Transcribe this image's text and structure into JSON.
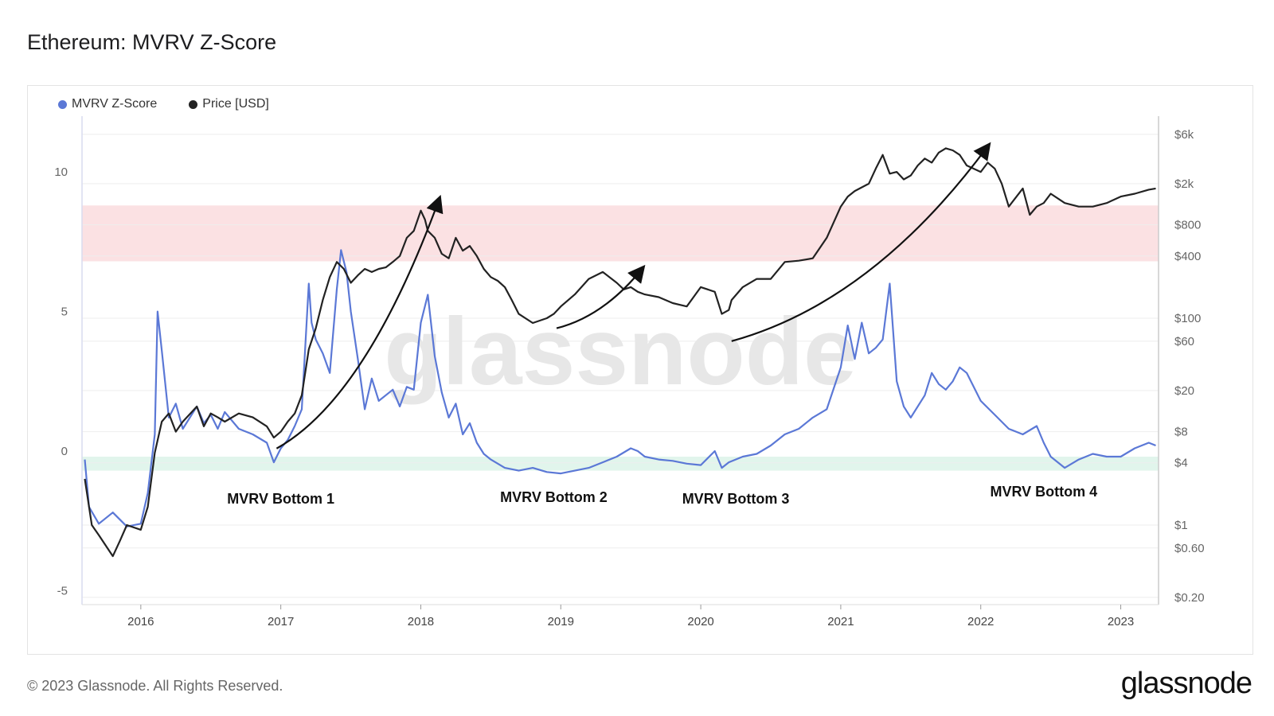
{
  "title": "Ethereum: MVRV Z-Score",
  "legend": [
    {
      "label": "MVRV Z-Score",
      "color": "#5b78d6"
    },
    {
      "label": "Price [USD]",
      "color": "#222222"
    }
  ],
  "footer": {
    "copyright": "© 2023 Glassnode. All Rights Reserved.",
    "brand": "glassnode"
  },
  "watermark": "glassnode",
  "chart_data": {
    "type": "line",
    "left_axis": {
      "ticks": [
        10,
        5,
        0,
        -5
      ],
      "tick_labels": [
        "10",
        "5",
        "0",
        "-5"
      ],
      "range": [
        -5.5,
        12
      ]
    },
    "right_axis": {
      "scale": "log",
      "ticks": [
        6000,
        2000,
        800,
        400,
        100,
        60,
        20,
        8,
        4,
        1,
        0.6,
        0.2
      ],
      "tick_labels": [
        "$6k",
        "$2k",
        "$800",
        "$400",
        "$100",
        "$60",
        "$20",
        "$8",
        "$4",
        "$1",
        "$0.60",
        "$0.20"
      ],
      "range": [
        0.17,
        9000
      ]
    },
    "x_axis": {
      "range": [
        2015.58,
        2023.27
      ],
      "ticks": [
        2016,
        2017,
        2018,
        2019,
        2020,
        2021,
        2022,
        2023
      ],
      "tick_labels": [
        "2016",
        "2017",
        "2018",
        "2019",
        "2020",
        "2021",
        "2022",
        "2023"
      ]
    },
    "bands": [
      {
        "name": "overvalued",
        "from": 6.8,
        "to": 8.8,
        "color": "#fbe1e3"
      },
      {
        "name": "undervalued",
        "from": -0.7,
        "to": -0.2,
        "color": "#e1f5ec"
      }
    ],
    "series": [
      {
        "name": "MVRV Z-Score",
        "color": "#5b78d6",
        "axis": "left",
        "x": [
          2015.6,
          2015.63,
          2015.7,
          2015.8,
          2015.9,
          2016.0,
          2016.05,
          2016.1,
          2016.12,
          2016.15,
          2016.2,
          2016.25,
          2016.3,
          2016.4,
          2016.45,
          2016.5,
          2016.55,
          2016.6,
          2016.7,
          2016.8,
          2016.9,
          2016.95,
          2017.0,
          2017.05,
          2017.1,
          2017.15,
          2017.2,
          2017.22,
          2017.25,
          2017.3,
          2017.35,
          2017.4,
          2017.43,
          2017.47,
          2017.5,
          2017.55,
          2017.6,
          2017.65,
          2017.7,
          2017.8,
          2017.85,
          2017.9,
          2017.95,
          2018.0,
          2018.05,
          2018.1,
          2018.15,
          2018.2,
          2018.25,
          2018.3,
          2018.35,
          2018.4,
          2018.45,
          2018.5,
          2018.6,
          2018.7,
          2018.8,
          2018.9,
          2019.0,
          2019.1,
          2019.2,
          2019.3,
          2019.4,
          2019.5,
          2019.55,
          2019.6,
          2019.7,
          2019.8,
          2019.9,
          2020.0,
          2020.1,
          2020.15,
          2020.2,
          2020.3,
          2020.4,
          2020.5,
          2020.6,
          2020.7,
          2020.8,
          2020.9,
          2021.0,
          2021.05,
          2021.1,
          2021.15,
          2021.2,
          2021.25,
          2021.3,
          2021.35,
          2021.4,
          2021.45,
          2021.5,
          2021.6,
          2021.65,
          2021.7,
          2021.75,
          2021.8,
          2021.85,
          2021.9,
          2022.0,
          2022.1,
          2022.2,
          2022.3,
          2022.4,
          2022.45,
          2022.5,
          2022.6,
          2022.7,
          2022.8,
          2022.9,
          2023.0,
          2023.1,
          2023.2,
          2023.25
        ],
        "values": [
          -0.3,
          -2.0,
          -2.6,
          -2.2,
          -2.7,
          -2.6,
          -1.5,
          0.6,
          5.0,
          3.6,
          1.2,
          1.7,
          0.8,
          1.6,
          1.0,
          1.3,
          0.8,
          1.4,
          0.8,
          0.6,
          0.3,
          -0.4,
          0.1,
          0.4,
          0.9,
          1.5,
          6.0,
          4.6,
          4.0,
          3.5,
          2.8,
          5.8,
          7.2,
          6.4,
          5.0,
          3.3,
          1.5,
          2.6,
          1.8,
          2.2,
          1.6,
          2.3,
          2.2,
          4.6,
          5.6,
          3.4,
          2.1,
          1.2,
          1.7,
          0.6,
          1.0,
          0.3,
          -0.1,
          -0.3,
          -0.6,
          -0.7,
          -0.6,
          -0.75,
          -0.8,
          -0.7,
          -0.6,
          -0.4,
          -0.2,
          0.1,
          0.0,
          -0.2,
          -0.3,
          -0.35,
          -0.45,
          -0.5,
          0.0,
          -0.6,
          -0.4,
          -0.2,
          -0.1,
          0.2,
          0.6,
          0.8,
          1.2,
          1.5,
          3.0,
          4.5,
          3.3,
          4.6,
          3.5,
          3.7,
          4.0,
          6.0,
          2.5,
          1.6,
          1.2,
          2.0,
          2.8,
          2.4,
          2.2,
          2.5,
          3.0,
          2.8,
          1.8,
          1.3,
          0.8,
          0.6,
          0.9,
          0.3,
          -0.2,
          -0.6,
          -0.3,
          -0.1,
          -0.2,
          -0.2,
          0.1,
          0.3,
          0.2
        ]
      },
      {
        "name": "Price [USD]",
        "color": "#222222",
        "axis": "right",
        "x": [
          2015.6,
          2015.65,
          2015.7,
          2015.8,
          2015.85,
          2015.9,
          2016.0,
          2016.05,
          2016.1,
          2016.15,
          2016.2,
          2016.25,
          2016.3,
          2016.4,
          2016.45,
          2016.5,
          2016.55,
          2016.6,
          2016.7,
          2016.8,
          2016.9,
          2016.95,
          2017.0,
          2017.05,
          2017.1,
          2017.15,
          2017.2,
          2017.25,
          2017.3,
          2017.35,
          2017.4,
          2017.45,
          2017.5,
          2017.55,
          2017.6,
          2017.65,
          2017.7,
          2017.75,
          2017.8,
          2017.85,
          2017.9,
          2017.95,
          2018.0,
          2018.03,
          2018.05,
          2018.1,
          2018.15,
          2018.2,
          2018.25,
          2018.3,
          2018.35,
          2018.4,
          2018.45,
          2018.5,
          2018.55,
          2018.6,
          2018.65,
          2018.7,
          2018.8,
          2018.9,
          2018.95,
          2019.0,
          2019.1,
          2019.2,
          2019.3,
          2019.4,
          2019.45,
          2019.5,
          2019.55,
          2019.6,
          2019.7,
          2019.8,
          2019.9,
          2020.0,
          2020.1,
          2020.15,
          2020.2,
          2020.22,
          2020.3,
          2020.4,
          2020.5,
          2020.6,
          2020.7,
          2020.8,
          2020.9,
          2021.0,
          2021.05,
          2021.1,
          2021.2,
          2021.25,
          2021.3,
          2021.35,
          2021.4,
          2021.45,
          2021.5,
          2021.55,
          2021.6,
          2021.65,
          2021.7,
          2021.75,
          2021.8,
          2021.85,
          2021.9,
          2022.0,
          2022.05,
          2022.1,
          2022.15,
          2022.2,
          2022.3,
          2022.35,
          2022.4,
          2022.45,
          2022.5,
          2022.6,
          2022.7,
          2022.8,
          2022.9,
          2023.0,
          2023.1,
          2023.2,
          2023.25
        ],
        "values": [
          2.8,
          1.0,
          0.8,
          0.5,
          0.7,
          1.0,
          0.9,
          1.5,
          5.0,
          10,
          12,
          8,
          10,
          14,
          9,
          12,
          11,
          10,
          12,
          11,
          9,
          7,
          8,
          10,
          12,
          18,
          50,
          80,
          150,
          250,
          350,
          300,
          220,
          260,
          300,
          280,
          300,
          310,
          350,
          400,
          600,
          700,
          1100,
          900,
          700,
          600,
          420,
          380,
          600,
          450,
          500,
          400,
          300,
          250,
          230,
          200,
          150,
          110,
          90,
          100,
          110,
          130,
          170,
          240,
          280,
          220,
          190,
          200,
          180,
          170,
          160,
          140,
          130,
          200,
          180,
          110,
          120,
          150,
          200,
          240,
          240,
          350,
          360,
          380,
          600,
          1200,
          1500,
          1700,
          2000,
          2800,
          3800,
          2500,
          2600,
          2200,
          2400,
          3000,
          3500,
          3200,
          4000,
          4400,
          4200,
          3800,
          3000,
          2600,
          3200,
          2800,
          2000,
          1200,
          1800,
          1000,
          1200,
          1300,
          1600,
          1300,
          1200,
          1200,
          1300,
          1500,
          1600,
          1750,
          1800
        ]
      }
    ],
    "annotations": [
      {
        "text": "MVRV Bottom 1",
        "x": 2017.0
      },
      {
        "text": "MVRV Bottom 2",
        "x": 2018.95
      },
      {
        "text": "MVRV Bottom 3",
        "x": 2020.25
      },
      {
        "text": "MVRV Bottom 4",
        "x": 2022.45
      }
    ],
    "arrows": [
      {
        "from_x": 2016.97,
        "from_price": 5.5,
        "to_x": 2018.13,
        "to_price": 1400
      },
      {
        "from_x": 2018.97,
        "from_price": 80,
        "to_x": 2019.58,
        "to_price": 300
      },
      {
        "from_x": 2020.22,
        "from_price": 60,
        "to_x": 2022.05,
        "to_price": 4600
      }
    ]
  }
}
